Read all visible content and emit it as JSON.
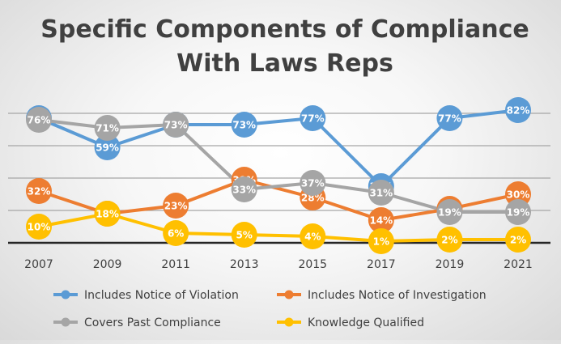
{
  "chart_data": {
    "type": "line",
    "title_lines": [
      "Specific Components of Compliance",
      "With Laws Reps"
    ],
    "categories": [
      "2007",
      "2009",
      "2011",
      "2013",
      "2015",
      "2017",
      "2019",
      "2021"
    ],
    "xlabel": "",
    "ylabel": "",
    "ylim": [
      0,
      90
    ],
    "grid": true,
    "legend_position": "bottom",
    "series": [
      {
        "name": "Includes Notice of Violation",
        "color": "#5B9BD5",
        "values": [
          77,
          59,
          73,
          73,
          77,
          35,
          77,
          82
        ],
        "labels": [
          "77%",
          "59%",
          "73%",
          "73%",
          "77%",
          "35%",
          "77%",
          "82%"
        ]
      },
      {
        "name": "Includes Notice of Investigation",
        "color": "#ED7D31",
        "values": [
          32,
          18,
          23,
          39,
          28,
          14,
          21,
          30
        ],
        "labels": [
          "32%",
          "18%",
          "23%",
          "39%",
          "28%",
          "14%",
          "21%",
          "30%"
        ]
      },
      {
        "name": "Covers Past Compliance",
        "color": "#A5A5A5",
        "values": [
          76,
          71,
          73,
          33,
          37,
          31,
          19,
          19
        ],
        "labels": [
          "76%",
          "71%",
          "73%",
          "33%",
          "37%",
          "31%",
          "19%",
          "19%"
        ]
      },
      {
        "name": "Knowledge Qualified",
        "color": "#FFC000",
        "values": [
          10,
          18,
          6,
          5,
          4,
          1,
          2,
          2
        ],
        "labels": [
          "10%",
          "18%",
          "6%",
          "5%",
          "4%",
          "1%",
          "2%",
          "2%"
        ]
      }
    ]
  }
}
